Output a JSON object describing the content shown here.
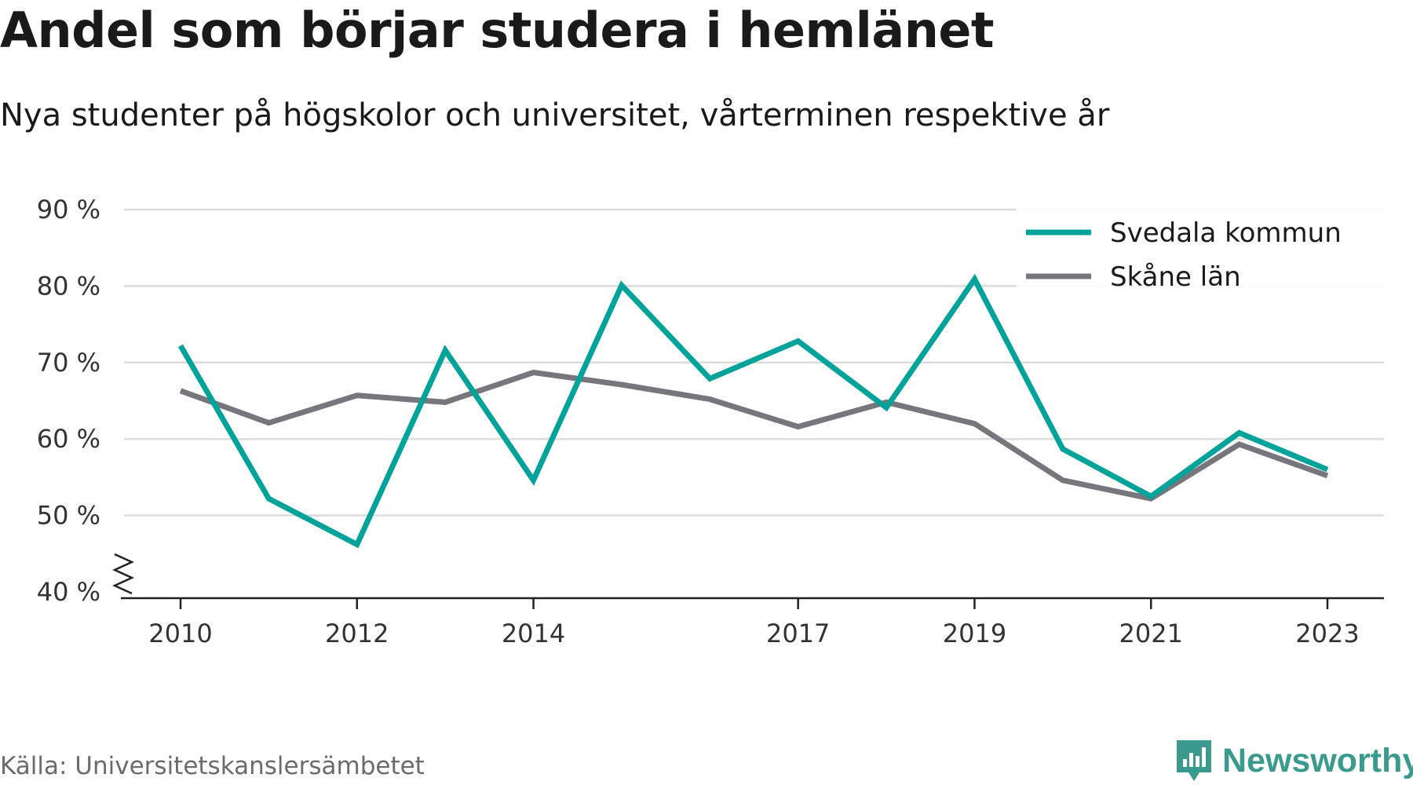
{
  "header": {
    "title": "Andel som börjar studera i hemlänet",
    "subtitle": "Nya studenter på högskolor och universitet, vårterminen respektive år"
  },
  "footer": {
    "source": "Källa: Universitetskanslersämbetet",
    "brand": "Newsworthy",
    "brand_color": "#3a9a8d"
  },
  "chart_data": {
    "type": "line",
    "title": "Andel som börjar studera i hemlänet",
    "subtitle": "Nya studenter på högskolor och universitet, vårterminen respektive år",
    "xlabel": "",
    "ylabel": "",
    "x": [
      2010,
      2011,
      2012,
      2013,
      2014,
      2015,
      2016,
      2017,
      2018,
      2019,
      2020,
      2021,
      2022,
      2023
    ],
    "x_tick_labels": [
      "2010",
      "2012",
      "2014",
      "2017",
      "2019",
      "2021",
      "2023"
    ],
    "y_ticks": [
      40,
      50,
      60,
      70,
      80,
      90
    ],
    "y_tick_labels": [
      "40 %",
      "50 %",
      "60 %",
      "70 %",
      "80 %",
      "90 %"
    ],
    "ylim": [
      40,
      90
    ],
    "y_axis_break": true,
    "grid": "horizontal",
    "legend_position": "top-right",
    "series": [
      {
        "name": "Svedala kommun",
        "color": "#00a39a",
        "values": [
          72.2,
          52.2,
          46.2,
          71.6,
          54.6,
          80.1,
          67.9,
          72.8,
          64.1,
          80.9,
          58.7,
          52.5,
          60.8,
          56.0
        ]
      },
      {
        "name": "Skåne län",
        "color": "#77767c",
        "values": [
          66.3,
          62.1,
          65.7,
          64.8,
          68.7,
          67.1,
          65.2,
          61.6,
          64.8,
          62.0,
          54.6,
          52.2,
          59.3,
          55.2
        ]
      }
    ]
  }
}
